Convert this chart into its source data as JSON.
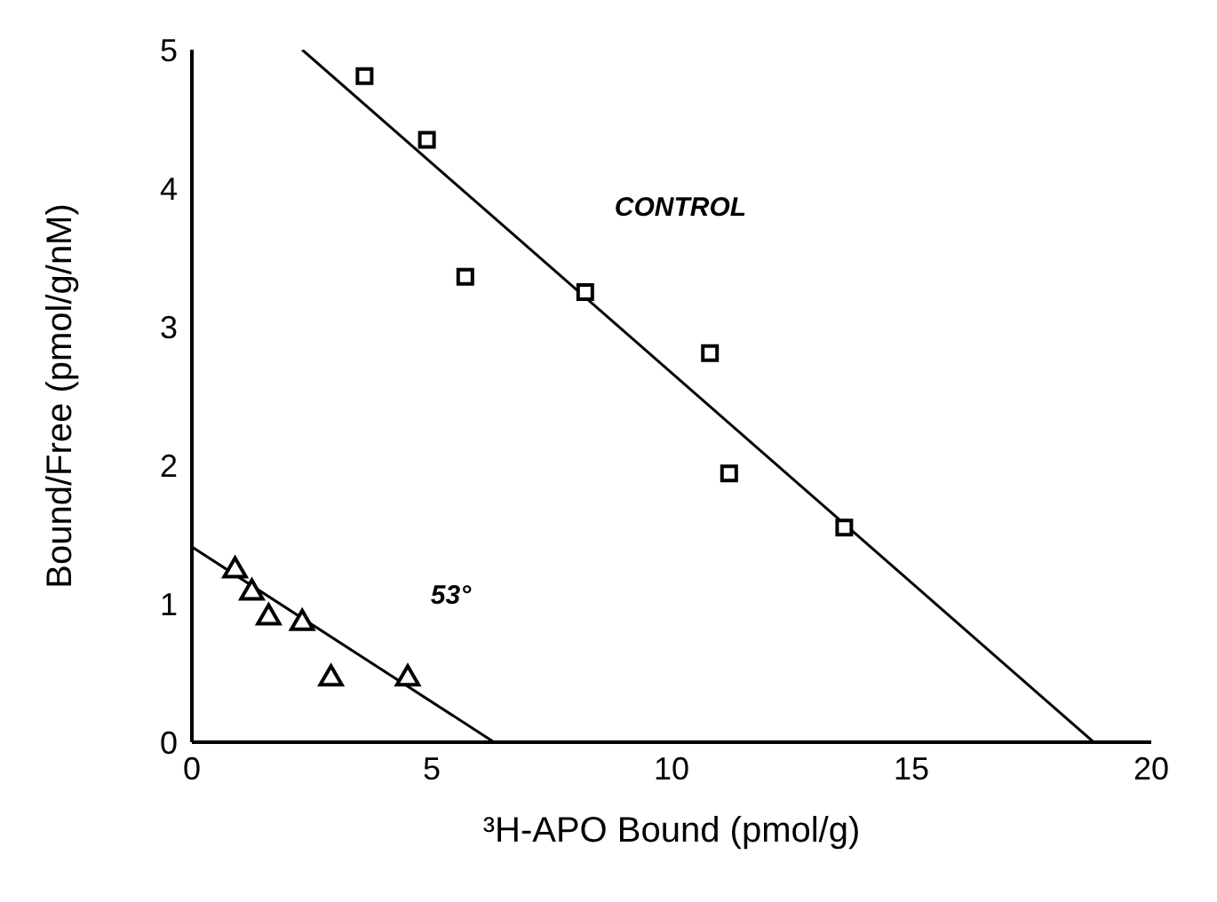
{
  "chart_data": {
    "type": "scatter",
    "xlabel": "³H-APO Bound (pmol/g)",
    "ylabel": "Bound/Free (pmol/g/nM)",
    "xlim": [
      0,
      20
    ],
    "xticks": [
      0,
      5,
      10,
      15,
      20
    ],
    "ylim": [
      0,
      5
    ],
    "yticks": [
      0,
      1,
      2,
      3,
      4,
      5
    ],
    "grid": false,
    "series": [
      {
        "marker": "square",
        "color": "#000000",
        "x": [
          3.6,
          4.9,
          5.7,
          8.2,
          10.8,
          11.2,
          13.6
        ],
        "values": [
          4.81,
          4.35,
          3.36,
          3.25,
          2.81,
          1.94,
          1.55
        ]
      },
      {
        "marker": "triangle",
        "color": "#000000",
        "x": [
          0.9,
          1.25,
          1.6,
          2.3,
          2.9,
          4.5
        ],
        "values": [
          1.24,
          1.08,
          0.9,
          0.86,
          0.46,
          0.46
        ]
      },
      {
        "type": "line",
        "marker": "none",
        "line_style": "solid",
        "color": "#000000",
        "x": [
          2.3,
          18.8
        ],
        "values": [
          5,
          0
        ]
      },
      {
        "type": "line",
        "marker": "none",
        "line_style": "solid",
        "color": "#000000",
        "x": [
          0,
          6.3
        ],
        "values": [
          1.41,
          0
        ]
      }
    ],
    "annotations": [
      "CONTROL",
      "53°"
    ]
  }
}
